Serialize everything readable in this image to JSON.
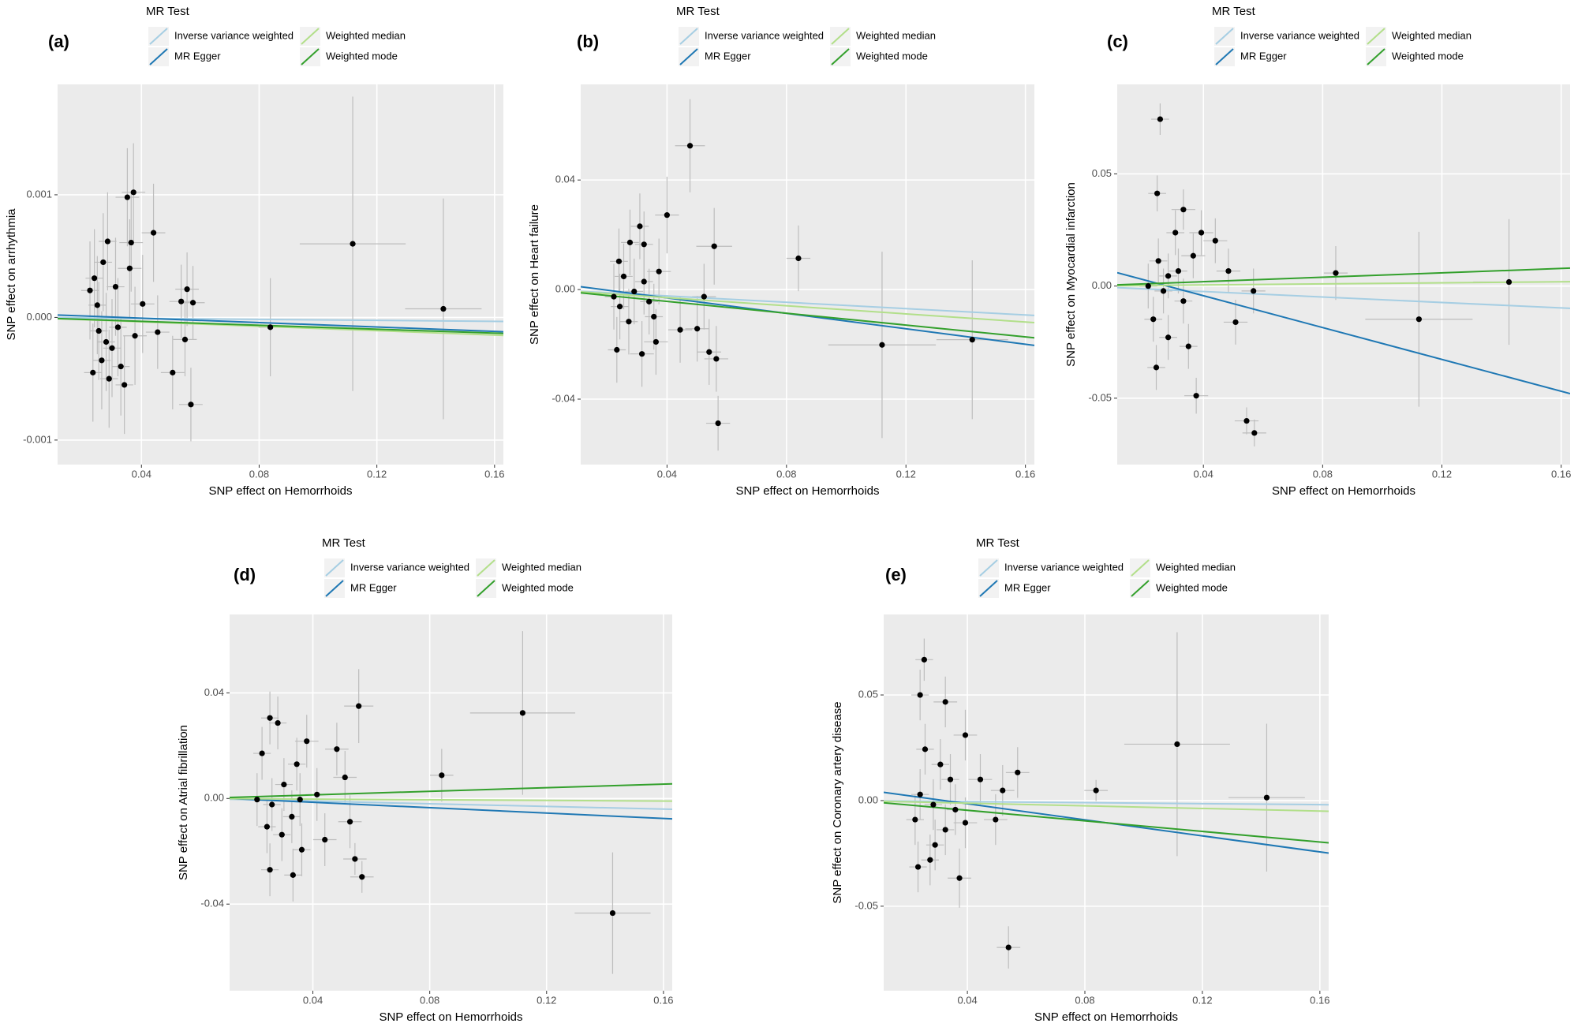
{
  "chart_data": [
    {
      "type": "scatter",
      "panel_label": "(a)",
      "legend_title": "MR Test",
      "x_label": "SNP effect on Hemorrhoids",
      "y_label": "SNP effect on arrhythmia",
      "xlim": [
        0.0115,
        0.163
      ],
      "xticks": [
        0.04,
        0.08,
        0.12,
        0.16
      ],
      "ylim": [
        -0.0012,
        0.0019
      ],
      "yticks": [
        -0.001,
        {
          "value": 0,
          "label": "0.000"
        },
        0.001
      ],
      "grid": true,
      "x": [
        0.0352,
        0.0373,
        0.1118,
        0.1426,
        0.0838,
        0.0568,
        0.0506,
        0.0441,
        0.0555,
        0.0575,
        0.0535,
        0.0548,
        0.0455,
        0.0404,
        0.0365,
        0.0285,
        0.027,
        0.024,
        0.0225,
        0.0255,
        0.03,
        0.033,
        0.0265,
        0.0235,
        0.029,
        0.0342,
        0.0312,
        0.032,
        0.036,
        0.0378,
        0.025,
        0.028
      ],
      "y": [
        0.00098,
        0.00102,
        0.0006,
        7e-05,
        -8e-05,
        -0.00071,
        -0.00045,
        0.00069,
        0.00023,
        0.00012,
        0.00013,
        -0.00018,
        -0.00012,
        0.00011,
        0.00061,
        0.00062,
        0.00045,
        0.00032,
        0.00022,
        -0.00011,
        -0.00025,
        -0.0004,
        -0.00035,
        -0.00045,
        -0.0005,
        -0.00055,
        0.00025,
        -8e-05,
        0.0004,
        -0.00015,
        0.0001,
        -0.0002
      ],
      "xerr": [
        0.004,
        0.004,
        0.018,
        0.013,
        0.004,
        0.004,
        0.004,
        0.004,
        0.004,
        0.004,
        0.004,
        0.004,
        0.004,
        0.004,
        0.004,
        0.003,
        0.003,
        0.003,
        0.003,
        0.003,
        0.003,
        0.003,
        0.003,
        0.003,
        0.003,
        0.003,
        0.003,
        0.003,
        0.004,
        0.004,
        0.003,
        0.003
      ],
      "yerr": [
        0.0004,
        0.0004,
        0.0012,
        0.0009,
        0.0004,
        0.0003,
        0.0003,
        0.0004,
        0.0003,
        0.0003,
        0.0003,
        0.0003,
        0.0003,
        0.0004,
        0.0004,
        0.0004,
        0.0004,
        0.0004,
        0.0004,
        0.0004,
        0.0004,
        0.0004,
        0.0004,
        0.0004,
        0.0004,
        0.0004,
        0.0004,
        0.0004,
        0.0004,
        0.0004,
        0.0004,
        0.0004
      ],
      "point_color": "#000000",
      "error_color": "#bdbdbd",
      "lines": [
        {
          "name": "Inverse variance weighted",
          "color": "#a6cee3",
          "intercept": 0,
          "slope": -0.0002
        },
        {
          "name": "MR Egger",
          "color": "#1f78b4",
          "intercept": 3e-05,
          "slope": -0.0009
        },
        {
          "name": "Weighted median",
          "color": "#b2df8a",
          "intercept": 0,
          "slope": -0.0009
        },
        {
          "name": "Weighted mode",
          "color": "#33a02c",
          "intercept": 0,
          "slope": -0.0008
        }
      ]
    },
    {
      "type": "scatter",
      "panel_label": "(b)",
      "legend_title": "MR Test",
      "x_label": "SNP effect on Hemorrhoids",
      "y_label": "SNP effect on Heart failure",
      "xlim": [
        0.0111,
        0.163
      ],
      "xticks": [
        0.04,
        0.08,
        0.12,
        0.16
      ],
      "ylim": [
        -0.0639,
        0.0749
      ],
      "yticks": [
        -0.04,
        {
          "value": 0,
          "label": "0.00"
        },
        0.04
      ],
      "grid": true,
      "x": [
        0.0477,
        0.04,
        0.0558,
        0.084,
        0.112,
        0.1422,
        0.0571,
        0.0541,
        0.0565,
        0.0524,
        0.0501,
        0.0444,
        0.0363,
        0.0316,
        0.0232,
        0.0309,
        0.0276,
        0.0323,
        0.0239,
        0.0255,
        0.029,
        0.034,
        0.0242,
        0.0272,
        0.0356,
        0.0373,
        0.0323,
        0.0222
      ],
      "y": [
        0.0525,
        0.0272,
        0.0158,
        0.0114,
        -0.0202,
        -0.0183,
        -0.0488,
        -0.0228,
        -0.0253,
        -0.0026,
        -0.0143,
        -0.0147,
        -0.0191,
        -0.0235,
        -0.022,
        0.0231,
        0.0172,
        0.0165,
        0.0103,
        0.0048,
        -0.0007,
        -0.0044,
        -0.0062,
        -0.0117,
        -0.0099,
        0.0066,
        0.0029,
        -0.0026
      ],
      "xerr": [
        0.005,
        0.004,
        0.006,
        0.004,
        0.018,
        0.012,
        0.004,
        0.004,
        0.004,
        0.004,
        0.004,
        0.004,
        0.004,
        0.004,
        0.003,
        0.003,
        0.003,
        0.003,
        0.003,
        0.003,
        0.003,
        0.003,
        0.003,
        0.003,
        0.003,
        0.004,
        0.003,
        0.003
      ],
      "yerr": [
        0.017,
        0.014,
        0.014,
        0.012,
        0.034,
        0.029,
        0.01,
        0.012,
        0.012,
        0.012,
        0.012,
        0.012,
        0.012,
        0.012,
        0.012,
        0.012,
        0.012,
        0.012,
        0.012,
        0.012,
        0.012,
        0.012,
        0.012,
        0.012,
        0.012,
        0.012,
        0.012,
        0.012
      ],
      "point_color": "#000000",
      "error_color": "#bdbdbd",
      "lines": [
        {
          "name": "Inverse variance weighted",
          "color": "#a6cee3",
          "intercept": 0,
          "slope": -0.058
        },
        {
          "name": "MR Egger",
          "color": "#1f78b4",
          "intercept": 0.0026,
          "slope": -0.141
        },
        {
          "name": "Weighted median",
          "color": "#b2df8a",
          "intercept": 0,
          "slope": -0.074
        },
        {
          "name": "Weighted mode",
          "color": "#33a02c",
          "intercept": 0,
          "slope": -0.108
        }
      ]
    },
    {
      "type": "scatter",
      "panel_label": "(c)",
      "legend_title": "MR Test",
      "x_label": "SNP effect on Hemorrhoids",
      "y_label": "SNP effect on Myocardial infarction",
      "xlim": [
        0.0111,
        0.163
      ],
      "xticks": [
        0.04,
        0.08,
        0.12,
        0.16
      ],
      "ylim": [
        -0.0796,
        0.0899
      ],
      "yticks": [
        -0.05,
        {
          "value": 0,
          "label": "0.00"
        },
        0.05
      ],
      "grid": true,
      "x": [
        0.0255,
        0.0245,
        0.0333,
        0.0844,
        0.1123,
        0.1425,
        0.0376,
        0.0545,
        0.0571,
        0.0508,
        0.0568,
        0.0242,
        0.0306,
        0.0393,
        0.044,
        0.0484,
        0.0249,
        0.0282,
        0.0333,
        0.0232,
        0.0282,
        0.035,
        0.0316,
        0.0266,
        0.0366,
        0.0215
      ],
      "y": [
        0.0744,
        0.0413,
        0.0341,
        0.0058,
        -0.0148,
        0.0018,
        -0.0489,
        -0.0601,
        -0.0655,
        -0.0161,
        -0.0022,
        -0.0363,
        0.0238,
        0.0238,
        0.0202,
        0.0067,
        0.0112,
        0.0045,
        -0.0067,
        -0.0148,
        -0.0229,
        -0.0269,
        0.0067,
        -0.0022,
        0.0135,
        0
      ],
      "xerr": [
        0.003,
        0.003,
        0.004,
        0.004,
        0.018,
        0.012,
        0.004,
        0.004,
        0.004,
        0.004,
        0.004,
        0.003,
        0.003,
        0.004,
        0.004,
        0.004,
        0.003,
        0.003,
        0.003,
        0.003,
        0.003,
        0.003,
        0.003,
        0.003,
        0.004,
        0.003
      ],
      "yerr": [
        0.007,
        0.008,
        0.009,
        0.012,
        0.039,
        0.028,
        0.008,
        0.006,
        0.006,
        0.01,
        0.01,
        0.01,
        0.01,
        0.01,
        0.01,
        0.01,
        0.01,
        0.01,
        0.01,
        0.01,
        0.01,
        0.01,
        0.01,
        0.01,
        0.01,
        0.01
      ],
      "point_color": "#000000",
      "error_color": "#bdbdbd",
      "lines": [
        {
          "name": "Inverse variance weighted",
          "color": "#a6cee3",
          "intercept": 0,
          "slope": -0.061
        },
        {
          "name": "MR Egger",
          "color": "#1f78b4",
          "intercept": 0.0099,
          "slope": -0.355
        },
        {
          "name": "Weighted median",
          "color": "#b2df8a",
          "intercept": 0,
          "slope": 0.012
        },
        {
          "name": "Weighted mode",
          "color": "#33a02c",
          "intercept": 0,
          "slope": 0.049
        }
      ]
    },
    {
      "type": "scatter",
      "panel_label": "(d)",
      "legend_title": "MR Test",
      "x_label": "SNP effect on Hemorrhoids",
      "y_label": "SNP effect on Atrial fibrillation",
      "xlim": [
        0.0115,
        0.163
      ],
      "xticks": [
        0.04,
        0.08,
        0.12,
        0.16
      ],
      "ylim": [
        -0.0728,
        0.0697
      ],
      "yticks": [
        -0.04,
        {
          "value": 0,
          "label": "0.00"
        },
        0.04
      ],
      "grid": true,
      "x": [
        0.0557,
        0.1118,
        0.1426,
        0.0841,
        0.0568,
        0.0544,
        0.0332,
        0.0482,
        0.051,
        0.0527,
        0.0441,
        0.0253,
        0.028,
        0.0226,
        0.0379,
        0.0345,
        0.0301,
        0.026,
        0.0328,
        0.0243,
        0.0362,
        0.0253,
        0.0294,
        0.0414,
        0.0209,
        0.0356
      ],
      "y": [
        0.035,
        0.0324,
        -0.0434,
        0.0088,
        -0.0297,
        -0.0229,
        -0.029,
        0.0187,
        0.008,
        -0.0088,
        -0.0156,
        0.0305,
        0.0286,
        0.0171,
        0.0217,
        0.013,
        0.0053,
        -0.0023,
        -0.0069,
        -0.0107,
        -0.0194,
        -0.027,
        -0.0137,
        0.0015,
        -0.0004,
        -0.0004
      ],
      "xerr": [
        0.005,
        0.018,
        0.013,
        0.004,
        0.004,
        0.004,
        0.003,
        0.004,
        0.004,
        0.004,
        0.004,
        0.003,
        0.003,
        0.003,
        0.004,
        0.003,
        0.003,
        0.003,
        0.003,
        0.003,
        0.003,
        0.003,
        0.003,
        0.004,
        0.003,
        0.003
      ],
      "yerr": [
        0.014,
        0.031,
        0.023,
        0.01,
        0.006,
        0.006,
        0.01,
        0.01,
        0.01,
        0.01,
        0.01,
        0.01,
        0.01,
        0.01,
        0.01,
        0.01,
        0.01,
        0.01,
        0.01,
        0.01,
        0.01,
        0.01,
        0.01,
        0.01,
        0.01,
        0.01
      ],
      "point_color": "#000000",
      "error_color": "#bdbdbd",
      "lines": [
        {
          "name": "Inverse variance weighted",
          "color": "#a6cee3",
          "intercept": 0,
          "slope": -0.025
        },
        {
          "name": "MR Egger",
          "color": "#1f78b4",
          "intercept": 0.0006,
          "slope": -0.051
        },
        {
          "name": "Weighted median",
          "color": "#b2df8a",
          "intercept": 0,
          "slope": -0.006
        },
        {
          "name": "Weighted mode",
          "color": "#33a02c",
          "intercept": 0,
          "slope": 0.034
        }
      ]
    },
    {
      "type": "scatter",
      "panel_label": "(e)",
      "legend_title": "MR Test",
      "x_label": "SNP effect on Hemorrhoids",
      "y_label": "SNP effect on Coronary artery disease",
      "xlim": [
        0.0115,
        0.163
      ],
      "xticks": [
        0.04,
        0.08,
        0.12,
        0.16
      ],
      "ylim": [
        -0.09,
        0.0881
      ],
      "yticks": [
        -0.05,
        {
          "value": 0,
          "label": "0.00"
        },
        0.05
      ],
      "grid": true,
      "x": [
        0.0253,
        0.0239,
        0.0325,
        0.0393,
        0.1114,
        0.1419,
        0.0838,
        0.054,
        0.0373,
        0.0571,
        0.0444,
        0.052,
        0.0496,
        0.0232,
        0.0273,
        0.0256,
        0.0308,
        0.0342,
        0.0239,
        0.0284,
        0.0359,
        0.0222,
        0.0325,
        0.0393,
        0.029
      ],
      "y": [
        0.0667,
        0.05,
        0.0467,
        0.031,
        0.0267,
        0.0014,
        0.0048,
        -0.0695,
        -0.0367,
        0.0133,
        0.01,
        0.0048,
        -0.009,
        -0.0314,
        -0.0281,
        0.0243,
        0.0171,
        0.01,
        0.0029,
        -0.0019,
        -0.0043,
        -0.009,
        -0.0138,
        -0.0105,
        -0.021
      ],
      "xerr": [
        0.003,
        0.003,
        0.004,
        0.004,
        0.018,
        0.013,
        0.004,
        0.004,
        0.004,
        0.004,
        0.004,
        0.004,
        0.004,
        0.003,
        0.003,
        0.003,
        0.003,
        0.003,
        0.003,
        0.003,
        0.003,
        0.003,
        0.003,
        0.004,
        0.003
      ],
      "yerr": [
        0.01,
        0.012,
        0.012,
        0.012,
        0.053,
        0.035,
        0.005,
        0.01,
        0.014,
        0.012,
        0.012,
        0.012,
        0.012,
        0.012,
        0.012,
        0.012,
        0.012,
        0.012,
        0.012,
        0.012,
        0.012,
        0.012,
        0.012,
        0.012,
        0.012
      ],
      "point_color": "#000000",
      "error_color": "#bdbdbd",
      "lines": [
        {
          "name": "Inverse variance weighted",
          "color": "#a6cee3",
          "intercept": 0,
          "slope": -0.012
        },
        {
          "name": "MR Egger",
          "color": "#1f78b4",
          "intercept": 0.0061,
          "slope": -0.19
        },
        {
          "name": "Weighted median",
          "color": "#b2df8a",
          "intercept": 0,
          "slope": -0.031
        },
        {
          "name": "Weighted mode",
          "color": "#33a02c",
          "intercept": 0.0004,
          "slope": -0.125
        }
      ]
    }
  ]
}
